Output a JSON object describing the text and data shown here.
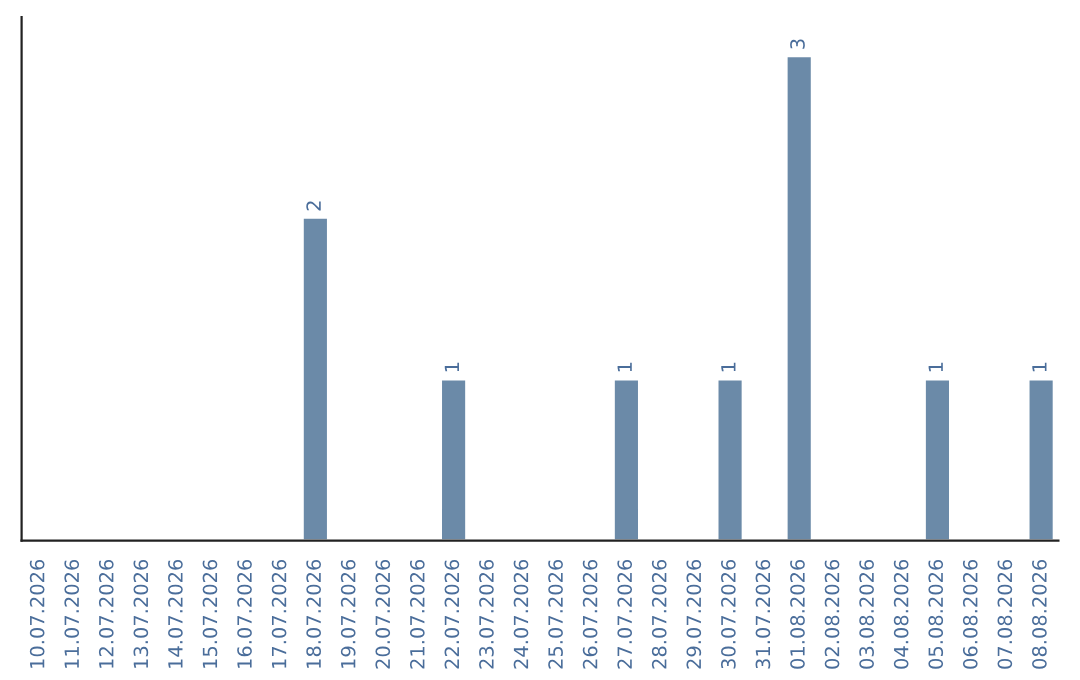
{
  "chart_data": {
    "type": "bar",
    "categories": [
      "10.07.2026",
      "11.07.2026",
      "12.07.2026",
      "13.07.2026",
      "14.07.2026",
      "15.07.2026",
      "16.07.2026",
      "17.07.2026",
      "18.07.2026",
      "19.07.2026",
      "20.07.2026",
      "21.07.2026",
      "22.07.2026",
      "23.07.2026",
      "24.07.2026",
      "25.07.2026",
      "26.07.2026",
      "27.07.2026",
      "28.07.2026",
      "29.07.2026",
      "30.07.2026",
      "31.07.2026",
      "01.08.2026",
      "02.08.2026",
      "03.08.2026",
      "04.08.2026",
      "05.08.2026",
      "06.08.2026",
      "07.08.2026",
      "08.08.2026"
    ],
    "values": [
      null,
      null,
      null,
      null,
      null,
      null,
      null,
      null,
      2,
      null,
      null,
      null,
      1,
      null,
      null,
      null,
      null,
      1,
      null,
      null,
      1,
      null,
      3,
      null,
      null,
      null,
      1,
      null,
      null,
      1
    ],
    "value_labels": [
      null,
      null,
      null,
      null,
      null,
      null,
      null,
      null,
      "2",
      null,
      null,
      null,
      "1",
      null,
      null,
      null,
      null,
      "1",
      null,
      null,
      "1",
      null,
      "3",
      null,
      null,
      null,
      "1",
      null,
      null,
      "1"
    ],
    "color": "#6b8aa8",
    "tick_labels": "x",
    "grid": false,
    "legend": false
  }
}
